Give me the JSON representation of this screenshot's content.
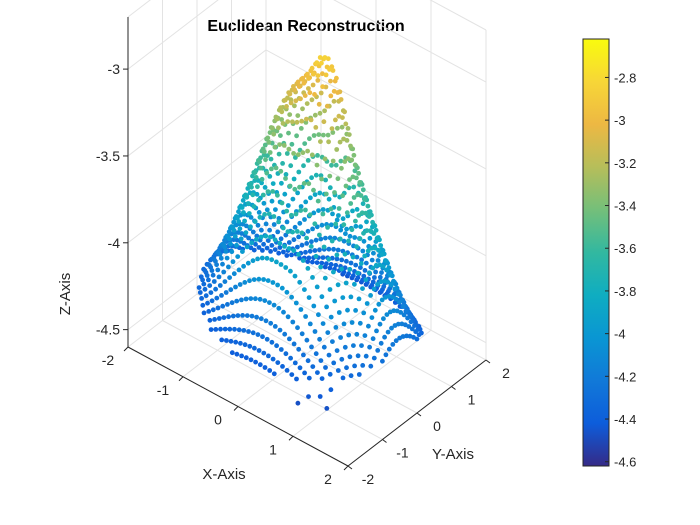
{
  "chart_data": {
    "type": "scatter",
    "title": "Euclidean Reconstruction",
    "xlabel": "X-Axis",
    "ylabel": "Y-Axis",
    "zlabel": "Z-Axis",
    "x_ticks": [
      "-2",
      "-1",
      "0",
      "1",
      "2"
    ],
    "y_ticks": [
      "-2",
      "-1",
      "0",
      "1",
      "2"
    ],
    "z_ticks": [
      "-3",
      "-3.5",
      "-4",
      "-4.5"
    ],
    "xlim": [
      -2,
      2
    ],
    "ylim": [
      -2,
      2
    ],
    "zlim": [
      -4.6,
      -2.7
    ],
    "grid": true,
    "colormap": "parula",
    "colorbar": {
      "range": [
        -4.62,
        -2.62
      ],
      "ticks": [
        "-2.8",
        "-3",
        "-3.2",
        "-3.4",
        "-3.6",
        "-3.8",
        "-4",
        "-4.2",
        "-4.4",
        "-4.6"
      ]
    },
    "surface_description": "point cloud of a face seen from above; color encodes Z depth"
  }
}
